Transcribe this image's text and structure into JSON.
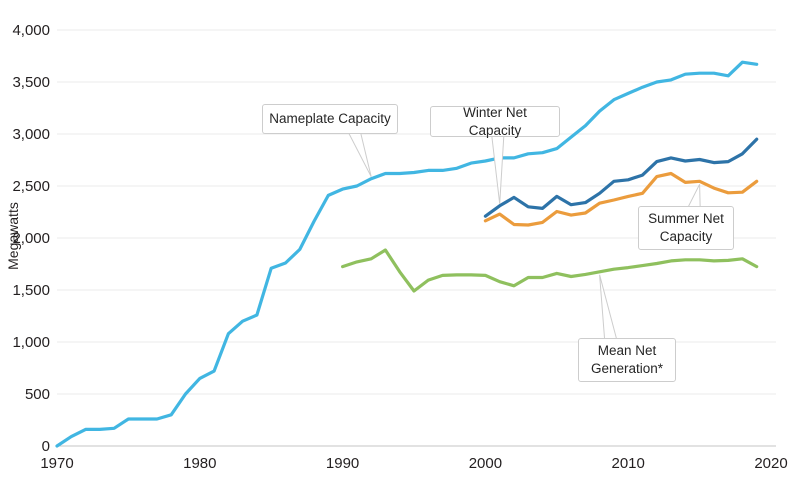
{
  "chart": {
    "ylabel": "Megawatts"
  },
  "chart_data": {
    "type": "line",
    "title": "",
    "xlabel": "",
    "ylabel": "Megawatts",
    "xlim": [
      1970,
      2020
    ],
    "ylim": [
      0,
      4000
    ],
    "grid": true,
    "legend_position": "inline-callouts",
    "x_ticks": [
      {
        "value": 1970,
        "label": "1970"
      },
      {
        "value": 1980,
        "label": "1980"
      },
      {
        "value": 1990,
        "label": "1990"
      },
      {
        "value": 2000,
        "label": "2000"
      },
      {
        "value": 2010,
        "label": "2010"
      },
      {
        "value": 2020,
        "label": "2020"
      }
    ],
    "y_ticks": [
      {
        "value": 0,
        "label": "0"
      },
      {
        "value": 500,
        "label": "500"
      },
      {
        "value": 1000,
        "label": "1,000"
      },
      {
        "value": 1500,
        "label": "1,500"
      },
      {
        "value": 2000,
        "label": "2,000"
      },
      {
        "value": 2500,
        "label": "2,500"
      },
      {
        "value": 3000,
        "label": "3,000"
      },
      {
        "value": 3500,
        "label": "3,500"
      },
      {
        "value": 4000,
        "label": "4,000"
      }
    ],
    "series": [
      {
        "name": "Nameplate Capacity",
        "color": "#41b6e2",
        "year_start": 1970,
        "values": [
          0,
          90,
          160,
          160,
          170,
          260,
          260,
          260,
          300,
          500,
          650,
          720,
          1080,
          1200,
          1260,
          1710,
          1760,
          1890,
          2160,
          2410,
          2470,
          2500,
          2570,
          2620,
          2620,
          2630,
          2650,
          2650,
          2670,
          2720,
          2740,
          2770,
          2770,
          2810,
          2820,
          2860,
          2970,
          3080,
          3220,
          3330,
          3390,
          3450,
          3500,
          3520,
          3575,
          3585,
          3585,
          3560,
          3690,
          3670
        ]
      },
      {
        "name": "Winter Net Capacity",
        "color": "#2d73a8",
        "year_start": 2000,
        "values": [
          2210,
          2310,
          2390,
          2300,
          2285,
          2400,
          2320,
          2340,
          2430,
          2545,
          2560,
          2605,
          2735,
          2770,
          2740,
          2755,
          2725,
          2735,
          2810,
          2950
        ]
      },
      {
        "name": "Summer Net Capacity",
        "color": "#eb9c3d",
        "year_start": 2000,
        "values": [
          2165,
          2230,
          2130,
          2125,
          2150,
          2255,
          2220,
          2240,
          2335,
          2365,
          2400,
          2430,
          2590,
          2620,
          2535,
          2545,
          2480,
          2435,
          2440,
          2545
        ]
      },
      {
        "name": "Mean Net Generation*",
        "color": "#8fc05e",
        "year_start": 1990,
        "values": [
          1725,
          1770,
          1800,
          1885,
          1675,
          1490,
          1595,
          1640,
          1645,
          1645,
          1640,
          1580,
          1540,
          1620,
          1620,
          1660,
          1630,
          1650,
          1675,
          1700,
          1715,
          1735,
          1755,
          1780,
          1790,
          1790,
          1780,
          1785,
          1800,
          1725
        ]
      }
    ],
    "annotations": [
      {
        "label": "Nameplate Capacity",
        "series": "Nameplate Capacity",
        "target": {
          "year": 1992,
          "value": 2570
        },
        "tip_side": "below-box"
      },
      {
        "label": "Winter Net Capacity",
        "series": "Winter Net Capacity",
        "target": {
          "year": 2001,
          "value": 2310
        },
        "tip_side": "below-box"
      },
      {
        "label": "Summer Net Capacity",
        "series": "Summer Net Capacity",
        "target": {
          "year": 2015,
          "value": 2545
        },
        "tip_side": "above-box"
      },
      {
        "label": "Mean Net Generation*",
        "series": "Mean Net Generation*",
        "target": {
          "year": 2008,
          "value": 1675
        },
        "tip_side": "above-box"
      }
    ],
    "colors": {
      "grid": "#ebebeb",
      "axis": "#c6c6c6",
      "text": "#231f20",
      "callout_border": "#cdcdcd"
    }
  }
}
